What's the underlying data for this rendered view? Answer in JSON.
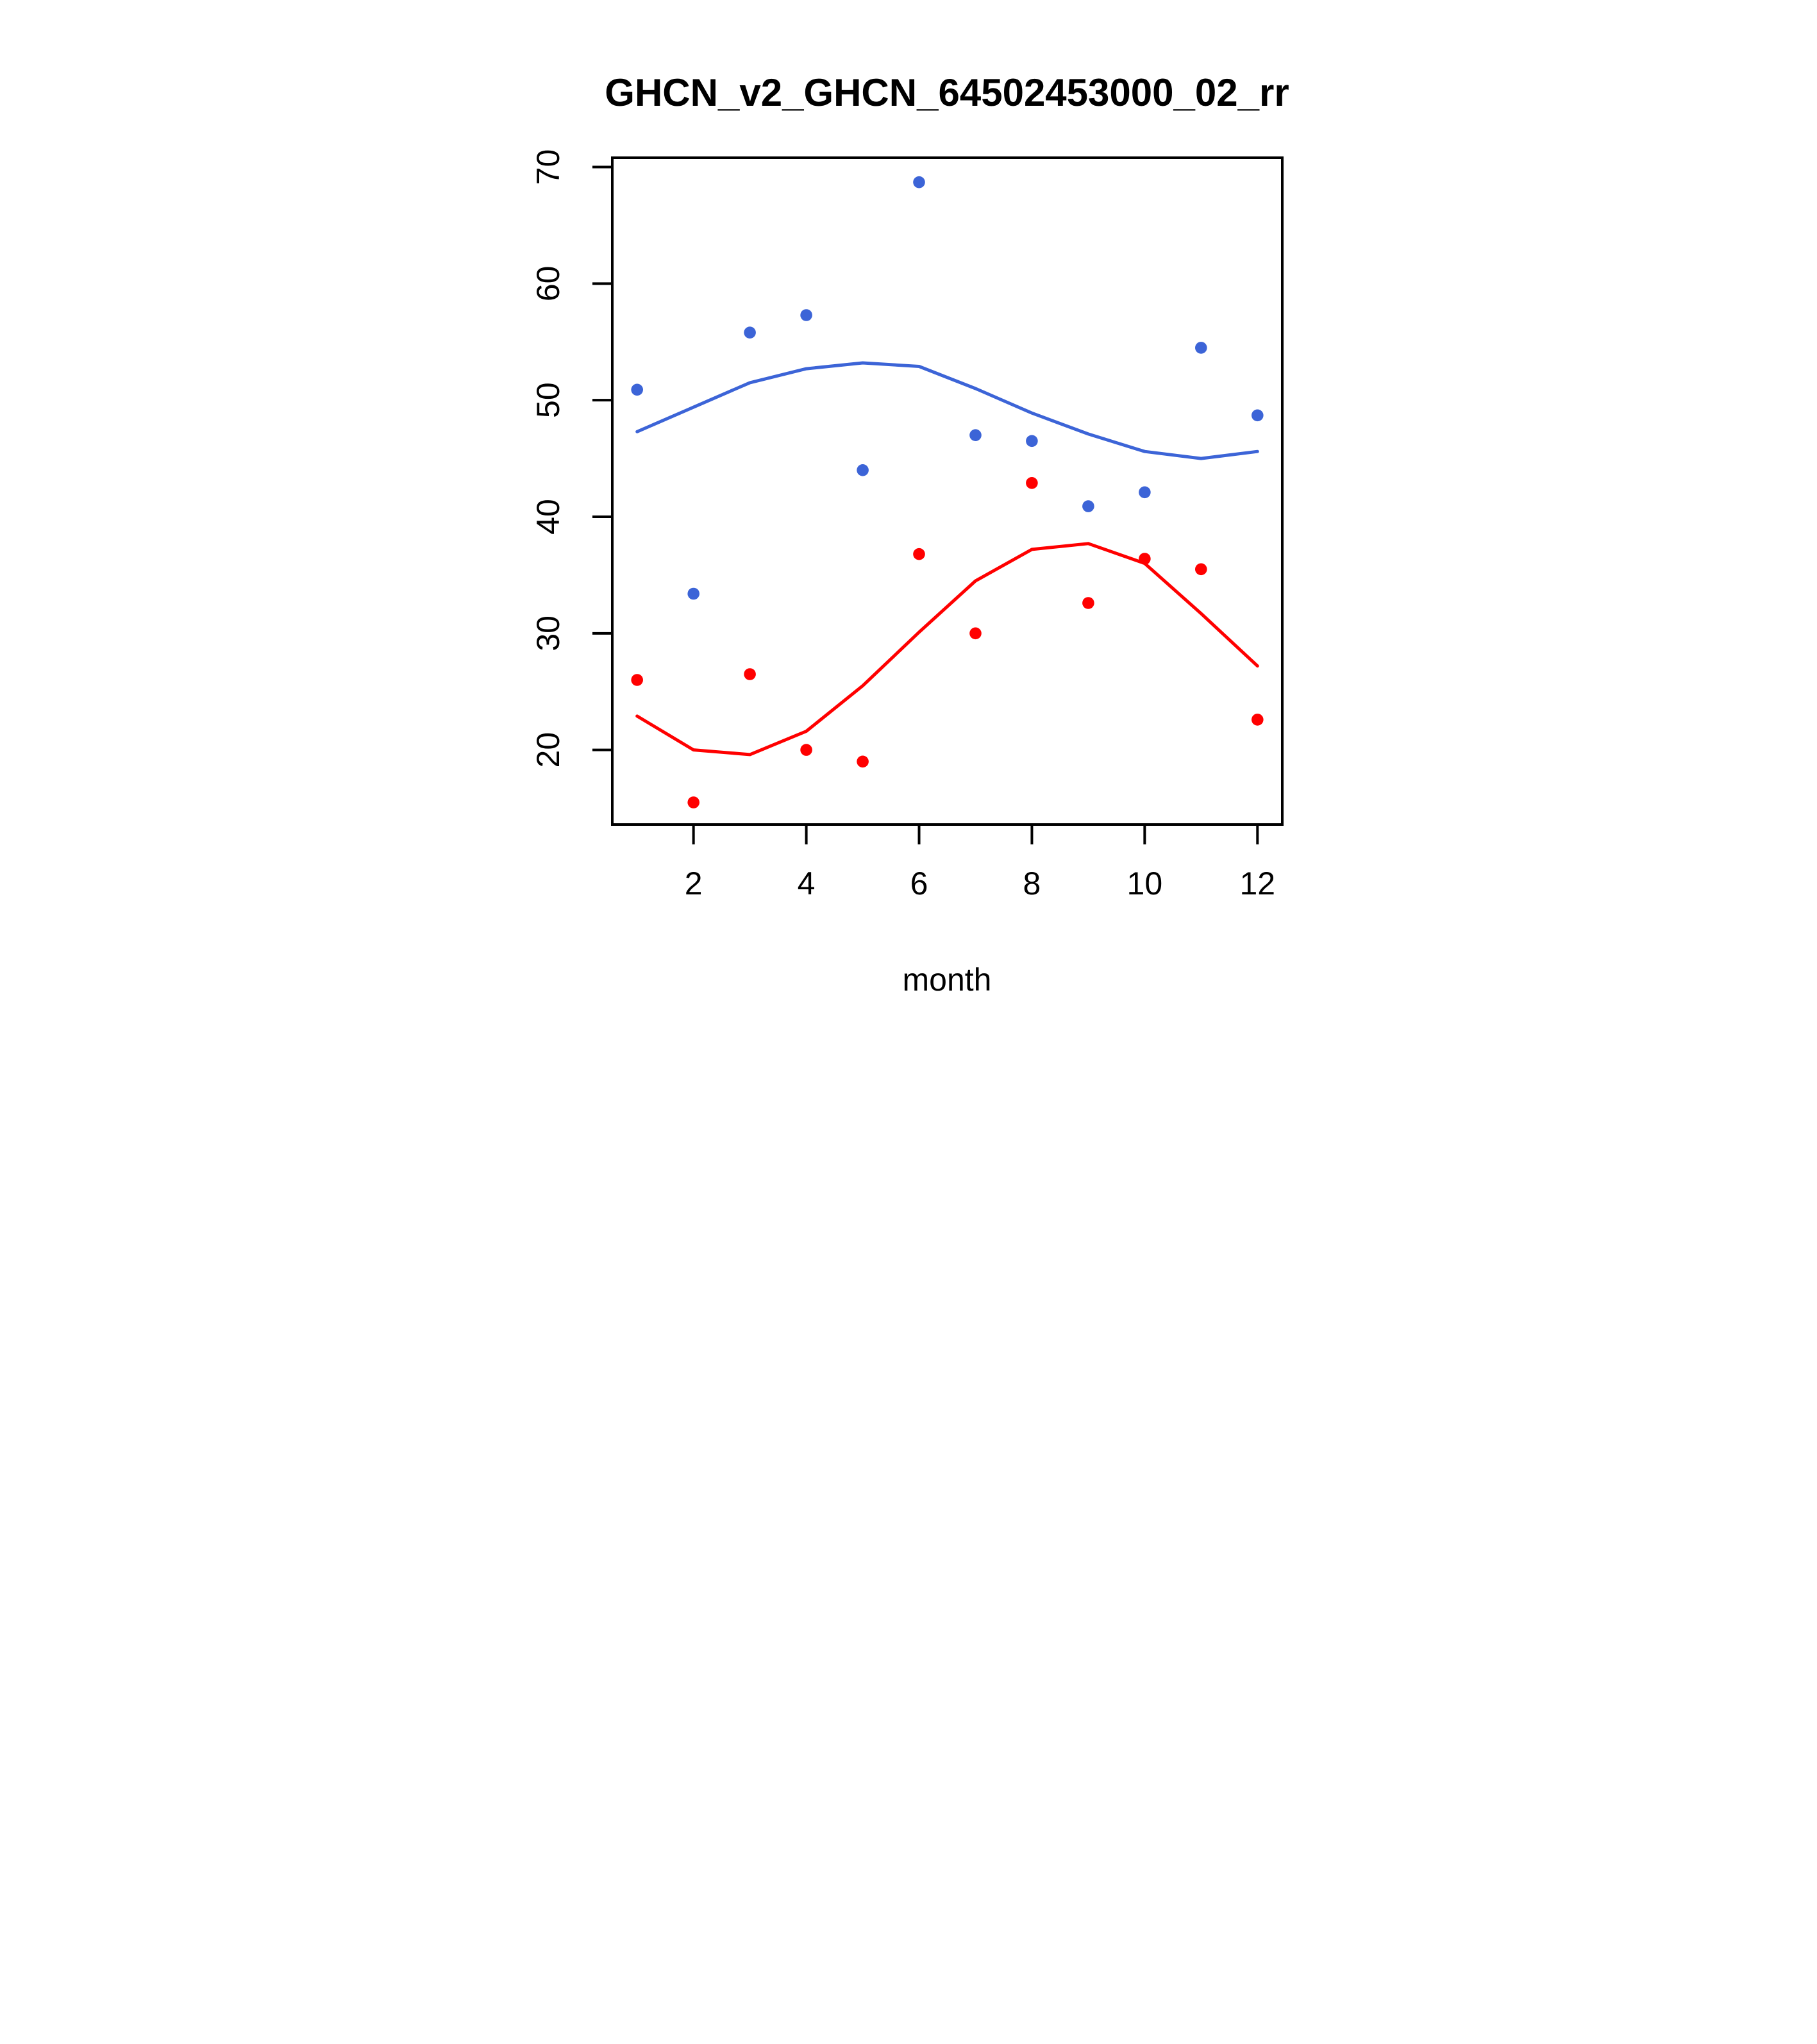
{
  "chart_data": {
    "type": "scatter",
    "title": "GHCN_v2_GHCN_64502453000_02_rr",
    "xlabel": "month",
    "ylabel": "",
    "x": [
      1,
      2,
      3,
      4,
      5,
      6,
      7,
      8,
      9,
      10,
      11,
      12
    ],
    "xticks": [
      2,
      4,
      6,
      8,
      10,
      12
    ],
    "yticks": [
      20,
      30,
      40,
      50,
      60,
      70
    ],
    "xlim": [
      0.56,
      12.44
    ],
    "ylim": [
      13.6,
      70.8
    ],
    "grid": false,
    "legend": "none",
    "colors": {
      "blue": "#3C64D7",
      "red": "#FF0000",
      "axis": "#000000",
      "background": "#FFFFFF"
    },
    "series": [
      {
        "name": "blue-points",
        "kind": "points",
        "color": "#3C64D7",
        "values": [
          50.9,
          33.4,
          55.8,
          57.3,
          44.0,
          68.7,
          47.0,
          46.5,
          40.9,
          42.1,
          54.5,
          48.7
        ]
      },
      {
        "name": "blue-trend",
        "kind": "line",
        "color": "#3C64D7",
        "values": [
          47.3,
          49.4,
          51.5,
          52.7,
          53.2,
          52.9,
          51.0,
          48.9,
          47.1,
          45.6,
          45.0,
          45.6
        ]
      },
      {
        "name": "red-points",
        "kind": "points",
        "color": "#FF0000",
        "values": [
          26.0,
          15.5,
          26.5,
          20.0,
          19.0,
          36.8,
          30.0,
          42.9,
          32.6,
          36.4,
          35.5,
          22.6
        ]
      },
      {
        "name": "red-trend",
        "kind": "line",
        "color": "#FF0000",
        "values": [
          22.9,
          20.0,
          19.6,
          21.6,
          25.5,
          30.1,
          34.5,
          37.2,
          37.7,
          36.0,
          31.7,
          27.2
        ]
      }
    ]
  }
}
